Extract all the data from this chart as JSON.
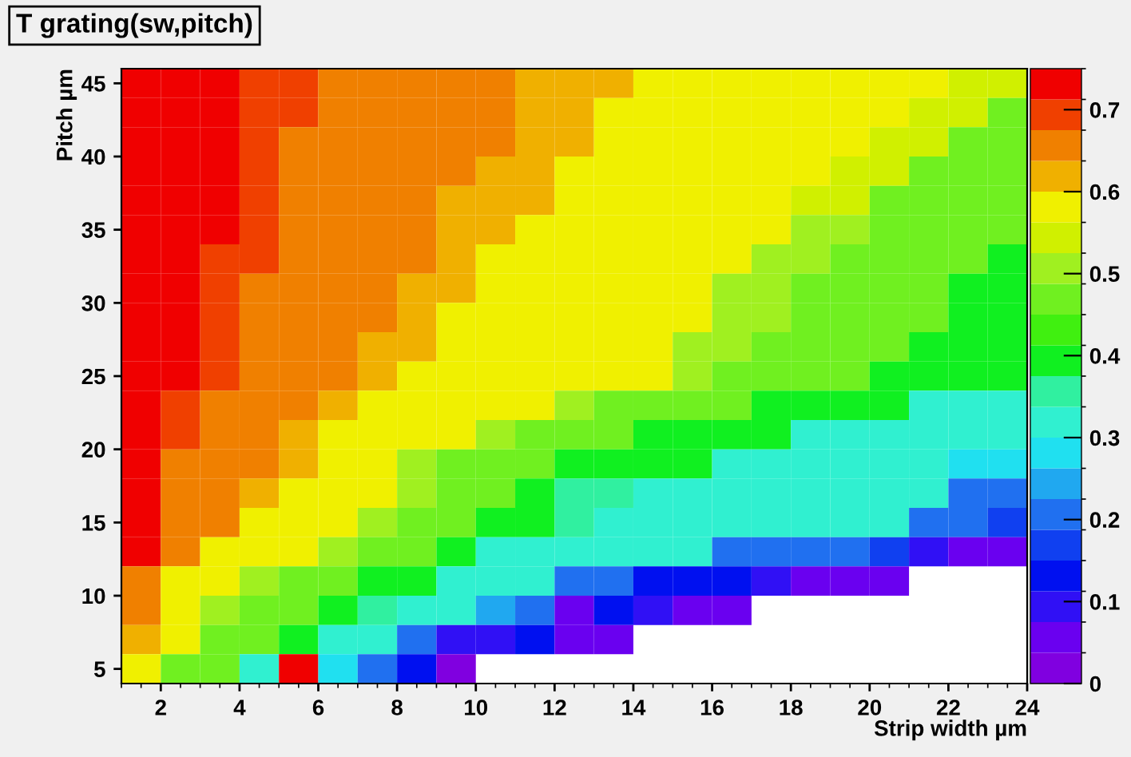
{
  "chart_data": {
    "type": "heatmap",
    "title": "T grating(sw,pitch)",
    "xlabel": "Strip width µm",
    "ylabel": "Pitch µm",
    "x": [
      1.5,
      2.5,
      3.5,
      4.5,
      5.5,
      6.5,
      7.5,
      8.5,
      9.5,
      10.5,
      11.5,
      12.5,
      13.5,
      14.5,
      15.5,
      16.5,
      17.5,
      18.5,
      19.5,
      20.5,
      21.5,
      22.5,
      23.5
    ],
    "y": [
      45,
      43,
      41,
      39,
      37,
      35,
      33,
      31,
      29,
      27,
      25,
      23,
      21,
      19,
      17,
      15,
      13,
      11,
      9,
      7,
      5
    ],
    "cells": [
      [
        0.72,
        0.72,
        0.72,
        0.69,
        0.69,
        0.65,
        0.65,
        0.65,
        0.65,
        0.65,
        0.62,
        0.62,
        0.62,
        0.58,
        0.58,
        0.58,
        0.58,
        0.58,
        0.58,
        0.58,
        0.58,
        0.53,
        0.53
      ],
      [
        0.72,
        0.72,
        0.72,
        0.69,
        0.69,
        0.65,
        0.65,
        0.65,
        0.65,
        0.65,
        0.62,
        0.62,
        0.58,
        0.58,
        0.58,
        0.58,
        0.58,
        0.58,
        0.58,
        0.58,
        0.53,
        0.53,
        0.47
      ],
      [
        0.72,
        0.72,
        0.72,
        0.69,
        0.65,
        0.65,
        0.65,
        0.65,
        0.65,
        0.65,
        0.62,
        0.62,
        0.58,
        0.58,
        0.58,
        0.58,
        0.58,
        0.58,
        0.58,
        0.53,
        0.53,
        0.47,
        0.47
      ],
      [
        0.72,
        0.72,
        0.72,
        0.69,
        0.65,
        0.65,
        0.65,
        0.65,
        0.65,
        0.62,
        0.62,
        0.58,
        0.58,
        0.58,
        0.58,
        0.58,
        0.58,
        0.58,
        0.53,
        0.53,
        0.46,
        0.46,
        0.46
      ],
      [
        0.72,
        0.72,
        0.72,
        0.69,
        0.65,
        0.65,
        0.65,
        0.65,
        0.62,
        0.62,
        0.62,
        0.58,
        0.58,
        0.58,
        0.58,
        0.58,
        0.58,
        0.53,
        0.53,
        0.46,
        0.46,
        0.46,
        0.46
      ],
      [
        0.72,
        0.72,
        0.72,
        0.69,
        0.65,
        0.65,
        0.65,
        0.65,
        0.62,
        0.62,
        0.58,
        0.58,
        0.58,
        0.58,
        0.58,
        0.58,
        0.58,
        0.52,
        0.52,
        0.45,
        0.45,
        0.45,
        0.45
      ],
      [
        0.72,
        0.72,
        0.69,
        0.69,
        0.65,
        0.65,
        0.65,
        0.65,
        0.62,
        0.58,
        0.58,
        0.58,
        0.58,
        0.58,
        0.58,
        0.58,
        0.52,
        0.52,
        0.45,
        0.45,
        0.45,
        0.45,
        0.4
      ],
      [
        0.72,
        0.72,
        0.69,
        0.65,
        0.65,
        0.65,
        0.65,
        0.62,
        0.62,
        0.58,
        0.58,
        0.58,
        0.58,
        0.58,
        0.58,
        0.52,
        0.52,
        0.45,
        0.45,
        0.45,
        0.45,
        0.4,
        0.4
      ],
      [
        0.72,
        0.72,
        0.69,
        0.65,
        0.65,
        0.65,
        0.65,
        0.62,
        0.58,
        0.58,
        0.58,
        0.58,
        0.58,
        0.58,
        0.58,
        0.52,
        0.52,
        0.45,
        0.45,
        0.45,
        0.45,
        0.39,
        0.39
      ],
      [
        0.72,
        0.72,
        0.69,
        0.65,
        0.65,
        0.65,
        0.62,
        0.62,
        0.58,
        0.58,
        0.58,
        0.58,
        0.58,
        0.58,
        0.52,
        0.52,
        0.45,
        0.45,
        0.45,
        0.45,
        0.38,
        0.38,
        0.38
      ],
      [
        0.72,
        0.72,
        0.69,
        0.65,
        0.65,
        0.65,
        0.62,
        0.58,
        0.58,
        0.58,
        0.58,
        0.58,
        0.58,
        0.58,
        0.52,
        0.45,
        0.45,
        0.45,
        0.45,
        0.38,
        0.38,
        0.38,
        0.38
      ],
      [
        0.72,
        0.69,
        0.65,
        0.65,
        0.65,
        0.62,
        0.58,
        0.58,
        0.58,
        0.58,
        0.58,
        0.52,
        0.45,
        0.45,
        0.45,
        0.45,
        0.38,
        0.38,
        0.38,
        0.38,
        0.33,
        0.33,
        0.33
      ],
      [
        0.72,
        0.69,
        0.65,
        0.65,
        0.62,
        0.58,
        0.58,
        0.58,
        0.58,
        0.52,
        0.45,
        0.45,
        0.45,
        0.38,
        0.38,
        0.38,
        0.38,
        0.32,
        0.32,
        0.32,
        0.32,
        0.3,
        0.3
      ],
      [
        0.72,
        0.65,
        0.65,
        0.65,
        0.62,
        0.58,
        0.58,
        0.52,
        0.45,
        0.45,
        0.45,
        0.38,
        0.38,
        0.38,
        0.38,
        0.3,
        0.3,
        0.3,
        0.3,
        0.3,
        0.3,
        0.27,
        0.27
      ],
      [
        0.72,
        0.65,
        0.65,
        0.62,
        0.58,
        0.58,
        0.58,
        0.52,
        0.45,
        0.45,
        0.4,
        0.35,
        0.35,
        0.3,
        0.3,
        0.3,
        0.3,
        0.3,
        0.3,
        0.3,
        0.3,
        0.22,
        0.22
      ],
      [
        0.72,
        0.65,
        0.65,
        0.58,
        0.58,
        0.58,
        0.52,
        0.45,
        0.45,
        0.4,
        0.4,
        0.35,
        0.3,
        0.3,
        0.3,
        0.3,
        0.3,
        0.3,
        0.3,
        0.3,
        0.22,
        0.22,
        0.17
      ],
      [
        0.72,
        0.65,
        0.58,
        0.58,
        0.58,
        0.52,
        0.45,
        0.45,
        0.38,
        0.3,
        0.3,
        0.3,
        0.3,
        0.3,
        0.3,
        0.22,
        0.22,
        0.22,
        0.22,
        0.15,
        0.1,
        0.04,
        0.04
      ],
      [
        0.65,
        0.58,
        0.58,
        0.52,
        0.45,
        0.45,
        0.38,
        0.38,
        0.3,
        0.3,
        0.3,
        0.22,
        0.22,
        0.12,
        0.12,
        0.12,
        0.1,
        0.04,
        0.04,
        0.04,
        null,
        null,
        null
      ],
      [
        0.65,
        0.58,
        0.52,
        0.45,
        0.45,
        0.38,
        0.35,
        0.3,
        0.3,
        0.25,
        0.2,
        0.06,
        0.12,
        0.08,
        0.06,
        0.04,
        null,
        null,
        null,
        null,
        null,
        null,
        null
      ],
      [
        0.62,
        0.58,
        0.45,
        0.45,
        0.38,
        0.3,
        0.3,
        0.2,
        0.1,
        0.1,
        0.12,
        0.04,
        0.04,
        null,
        null,
        null,
        null,
        null,
        null,
        null,
        null,
        null,
        null
      ],
      [
        0.58,
        0.45,
        0.45,
        0.3,
        0.72,
        0.28,
        0.2,
        0.12,
        0.03,
        null,
        null,
        null,
        null,
        null,
        null,
        null,
        null,
        null,
        null,
        null,
        null,
        null,
        null
      ]
    ],
    "xlim": [
      1,
      24
    ],
    "xticks": [
      2,
      4,
      6,
      8,
      10,
      12,
      14,
      16,
      18,
      20,
      22,
      24
    ],
    "ylim": [
      4,
      46
    ],
    "yticks": [
      5,
      10,
      15,
      20,
      25,
      30,
      35,
      40,
      45
    ],
    "clim": [
      0,
      0.75
    ],
    "cticks": [
      0,
      0.1,
      0.2,
      0.3,
      0.4,
      0.5,
      0.6,
      0.7
    ]
  }
}
